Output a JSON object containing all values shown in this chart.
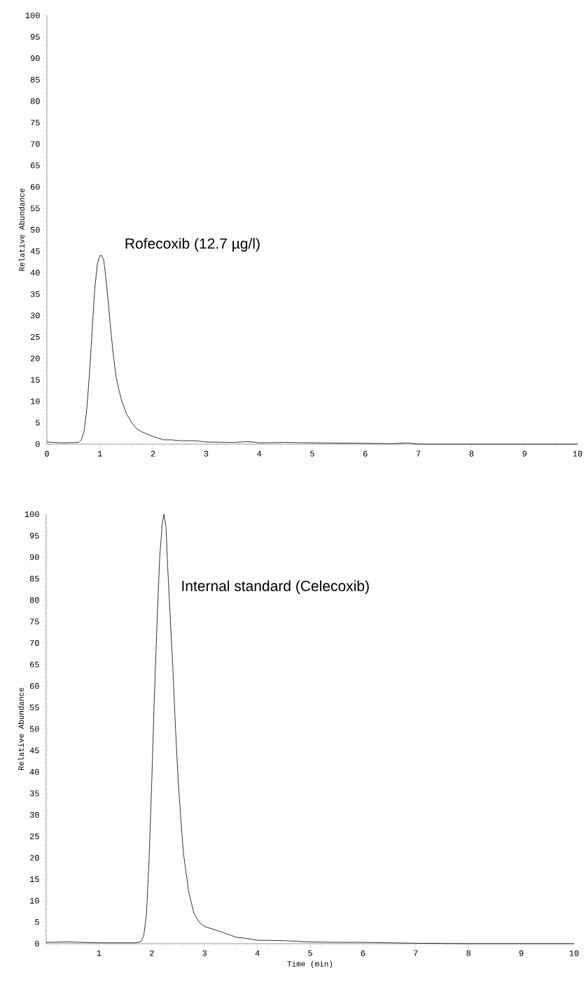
{
  "chart_data": [
    {
      "type": "line",
      "ylabel": "Relative Abundance",
      "xlim": [
        0,
        10
      ],
      "ylim": [
        0,
        100
      ],
      "xticks": [
        0,
        1,
        2,
        3,
        4,
        5,
        6,
        7,
        8,
        9,
        10
      ],
      "yticks": [
        0,
        5,
        10,
        15,
        20,
        25,
        30,
        35,
        40,
        45,
        50,
        55,
        60,
        65,
        70,
        75,
        80,
        85,
        90,
        95,
        100
      ],
      "annotations": [
        "Rofecoxib (12.7 µg/l)"
      ],
      "series": [
        {
          "color": "#000000",
          "x": [
            0,
            0.3,
            0.6,
            0.65,
            0.7,
            0.75,
            0.8,
            0.85,
            0.9,
            0.95,
            1.0,
            1.03,
            1.07,
            1.1,
            1.15,
            1.2,
            1.25,
            1.3,
            1.35,
            1.4,
            1.5,
            1.6,
            1.7,
            1.8,
            2.0,
            2.2,
            2.35,
            2.5,
            2.8,
            3.0,
            3.5,
            3.8,
            4.0,
            4.5,
            5.0,
            6.0,
            6.5,
            6.8,
            7.0,
            8.0,
            9.0,
            10.0
          ],
          "values": [
            0.5,
            0.3,
            0.4,
            1,
            3,
            8,
            16,
            26,
            36,
            42,
            44,
            44,
            43,
            40,
            34,
            27,
            21,
            16,
            13,
            10.5,
            7,
            5,
            3.5,
            2.8,
            1.8,
            1,
            1,
            0.8,
            0.8,
            0.5,
            0.4,
            0.6,
            0.3,
            0.4,
            0.3,
            0.2,
            0.1,
            0.3,
            0,
            0,
            0,
            0
          ]
        }
      ]
    },
    {
      "type": "line",
      "xlabel": "Time (min)",
      "ylabel": "Relative Abundance",
      "xlim": [
        0,
        10
      ],
      "ylim": [
        0,
        100
      ],
      "xticks": [
        {
          "value": 0,
          "label": null
        },
        1,
        2,
        3,
        4,
        5,
        6,
        7,
        8,
        9,
        10
      ],
      "yticks": [
        0,
        5,
        10,
        15,
        20,
        25,
        30,
        35,
        40,
        45,
        50,
        55,
        60,
        65,
        70,
        75,
        80,
        85,
        90,
        95,
        100
      ],
      "annotations": [
        "Internal standard (Celecoxib)"
      ],
      "series": [
        {
          "color": "#000000",
          "x": [
            0,
            0.4,
            1.0,
            1.7,
            1.8,
            1.85,
            1.9,
            1.95,
            2.0,
            2.05,
            2.1,
            2.15,
            2.2,
            2.23,
            2.27,
            2.3,
            2.35,
            2.4,
            2.45,
            2.5,
            2.55,
            2.6,
            2.7,
            2.8,
            2.9,
            3.0,
            3.3,
            3.6,
            3.8,
            4.0,
            4.5,
            5.0,
            5.5,
            6.0,
            7.0,
            8.0,
            9.0,
            10.0
          ],
          "values": [
            0.3,
            0.4,
            0.2,
            0.2,
            0.5,
            2,
            7,
            20,
            38,
            58,
            75,
            90,
            98,
            100,
            97,
            88,
            76,
            64,
            50,
            38,
            29,
            21,
            12,
            7,
            5,
            4,
            2.8,
            1.5,
            1.2,
            0.8,
            0.7,
            0.4,
            0.3,
            0.3,
            0.1,
            0,
            0,
            0
          ]
        }
      ]
    }
  ]
}
